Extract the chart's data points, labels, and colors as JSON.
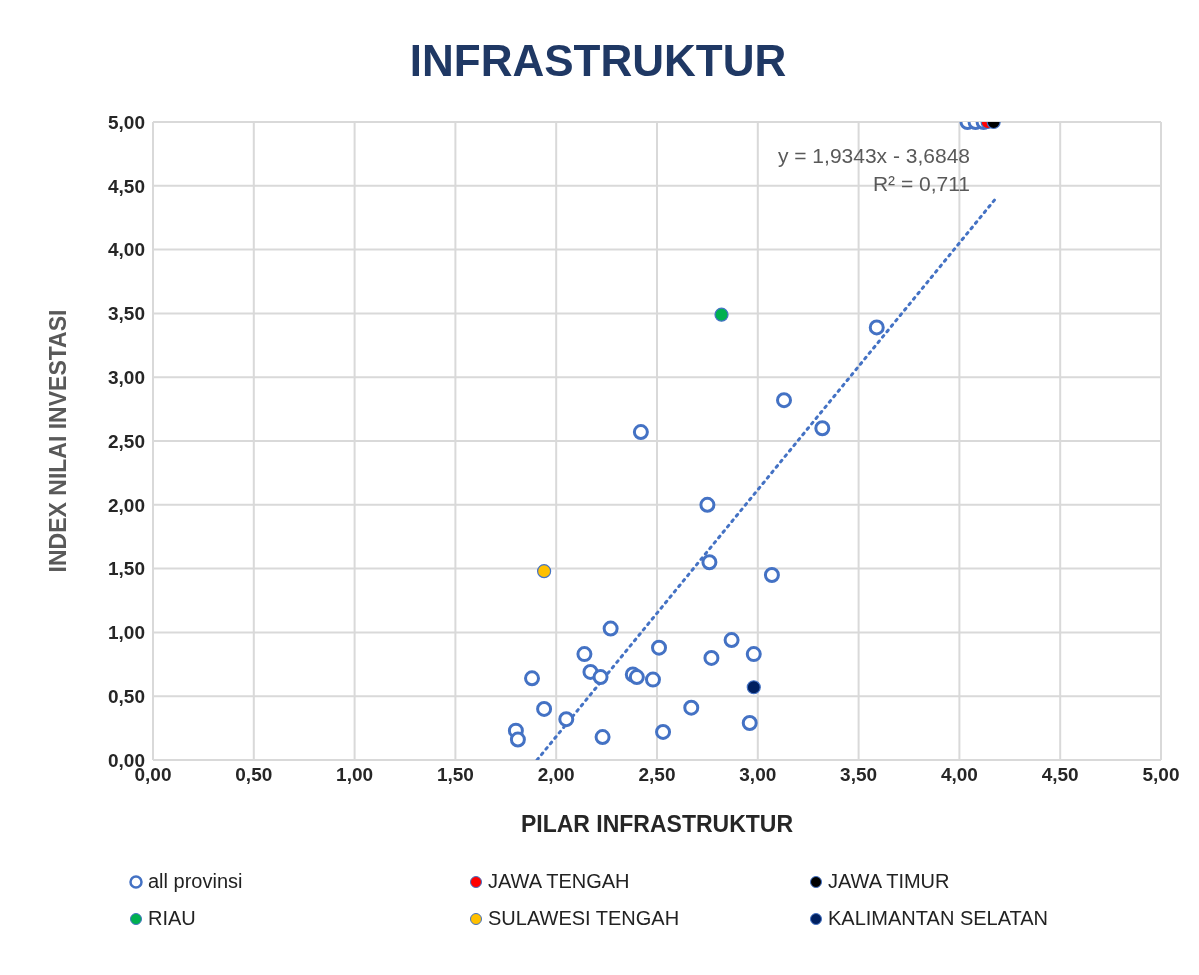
{
  "chart_data": {
    "type": "scatter",
    "title": "INFRASTRUKTUR",
    "xlabel": "PILAR INFRASTRUKTUR",
    "ylabel": "INDEX NILAI INVESTASI",
    "xlim": [
      0,
      5
    ],
    "ylim": [
      0,
      5
    ],
    "xticks": [
      {
        "value": 0,
        "label": "0,00"
      },
      {
        "value": 0.5,
        "label": "0,50"
      },
      {
        "value": 1,
        "label": "1,00"
      },
      {
        "value": 1.5,
        "label": "1,50"
      },
      {
        "value": 2,
        "label": "2,00"
      },
      {
        "value": 2.5,
        "label": "2,50"
      },
      {
        "value": 3,
        "label": "3,00"
      },
      {
        "value": 3.5,
        "label": "3,50"
      },
      {
        "value": 4,
        "label": "4,00"
      },
      {
        "value": 4.5,
        "label": "4,50"
      },
      {
        "value": 5,
        "label": "5,00"
      }
    ],
    "yticks": [
      {
        "value": 0,
        "label": "0,00"
      },
      {
        "value": 0.5,
        "label": "0,50"
      },
      {
        "value": 1,
        "label": "1,00"
      },
      {
        "value": 1.5,
        "label": "1,50"
      },
      {
        "value": 2,
        "label": "2,00"
      },
      {
        "value": 2.5,
        "label": "2,50"
      },
      {
        "value": 3,
        "label": "3,00"
      },
      {
        "value": 3.5,
        "label": "3,50"
      },
      {
        "value": 4,
        "label": "4,00"
      },
      {
        "value": 4.5,
        "label": "4,50"
      },
      {
        "value": 5,
        "label": "5,00"
      }
    ],
    "grid": true,
    "legend": "bottom",
    "marker": "circle",
    "annotations": [
      "y = 1,9343x - 3,6848",
      "R² = 0,711"
    ],
    "series": [
      {
        "name": "all provinsi",
        "color": "#4472c4",
        "x": [
          4.04,
          4.08,
          4.12,
          3.59,
          3.13,
          3.32,
          2.42,
          2.75,
          2.76,
          3.07,
          2.27,
          2.51,
          2.87,
          2.14,
          2.98,
          2.77,
          2.17,
          2.22,
          1.88,
          2.38,
          2.4,
          2.48,
          1.94,
          2.05,
          1.8,
          1.81,
          2.23,
          2.53,
          2.67,
          2.96
        ],
        "values": [
          5.0,
          5.0,
          5.0,
          3.39,
          2.82,
          2.6,
          2.57,
          2.0,
          1.55,
          1.45,
          1.03,
          0.88,
          0.94,
          0.83,
          0.83,
          0.8,
          0.69,
          0.65,
          0.64,
          0.67,
          0.65,
          0.63,
          0.4,
          0.32,
          0.23,
          0.16,
          0.18,
          0.22,
          0.41,
          0.29
        ]
      },
      {
        "name": "JAWA TENGAH",
        "color": "#ff0000",
        "x": [
          4.14
        ],
        "values": [
          5.0
        ]
      },
      {
        "name": "JAWA TIMUR",
        "color": "#000000",
        "x": [
          4.17
        ],
        "values": [
          5.0
        ]
      },
      {
        "name": "RIAU",
        "color": "#00b050",
        "x": [
          2.82
        ],
        "values": [
          3.49
        ]
      },
      {
        "name": "SULAWESI TENGAH",
        "color": "#ffc000",
        "x": [
          1.94
        ],
        "values": [
          1.48
        ]
      },
      {
        "name": "KALIMANTAN SELATAN",
        "color": "#002060",
        "x": [
          2.98
        ],
        "values": [
          0.57
        ]
      },
      {
        "type": "line",
        "marker": "none",
        "line_style": "dotted",
        "color": "#4472c4",
        "x": [
          1.905,
          4.18
        ],
        "values": [
          0.0,
          4.4
        ]
      }
    ]
  }
}
